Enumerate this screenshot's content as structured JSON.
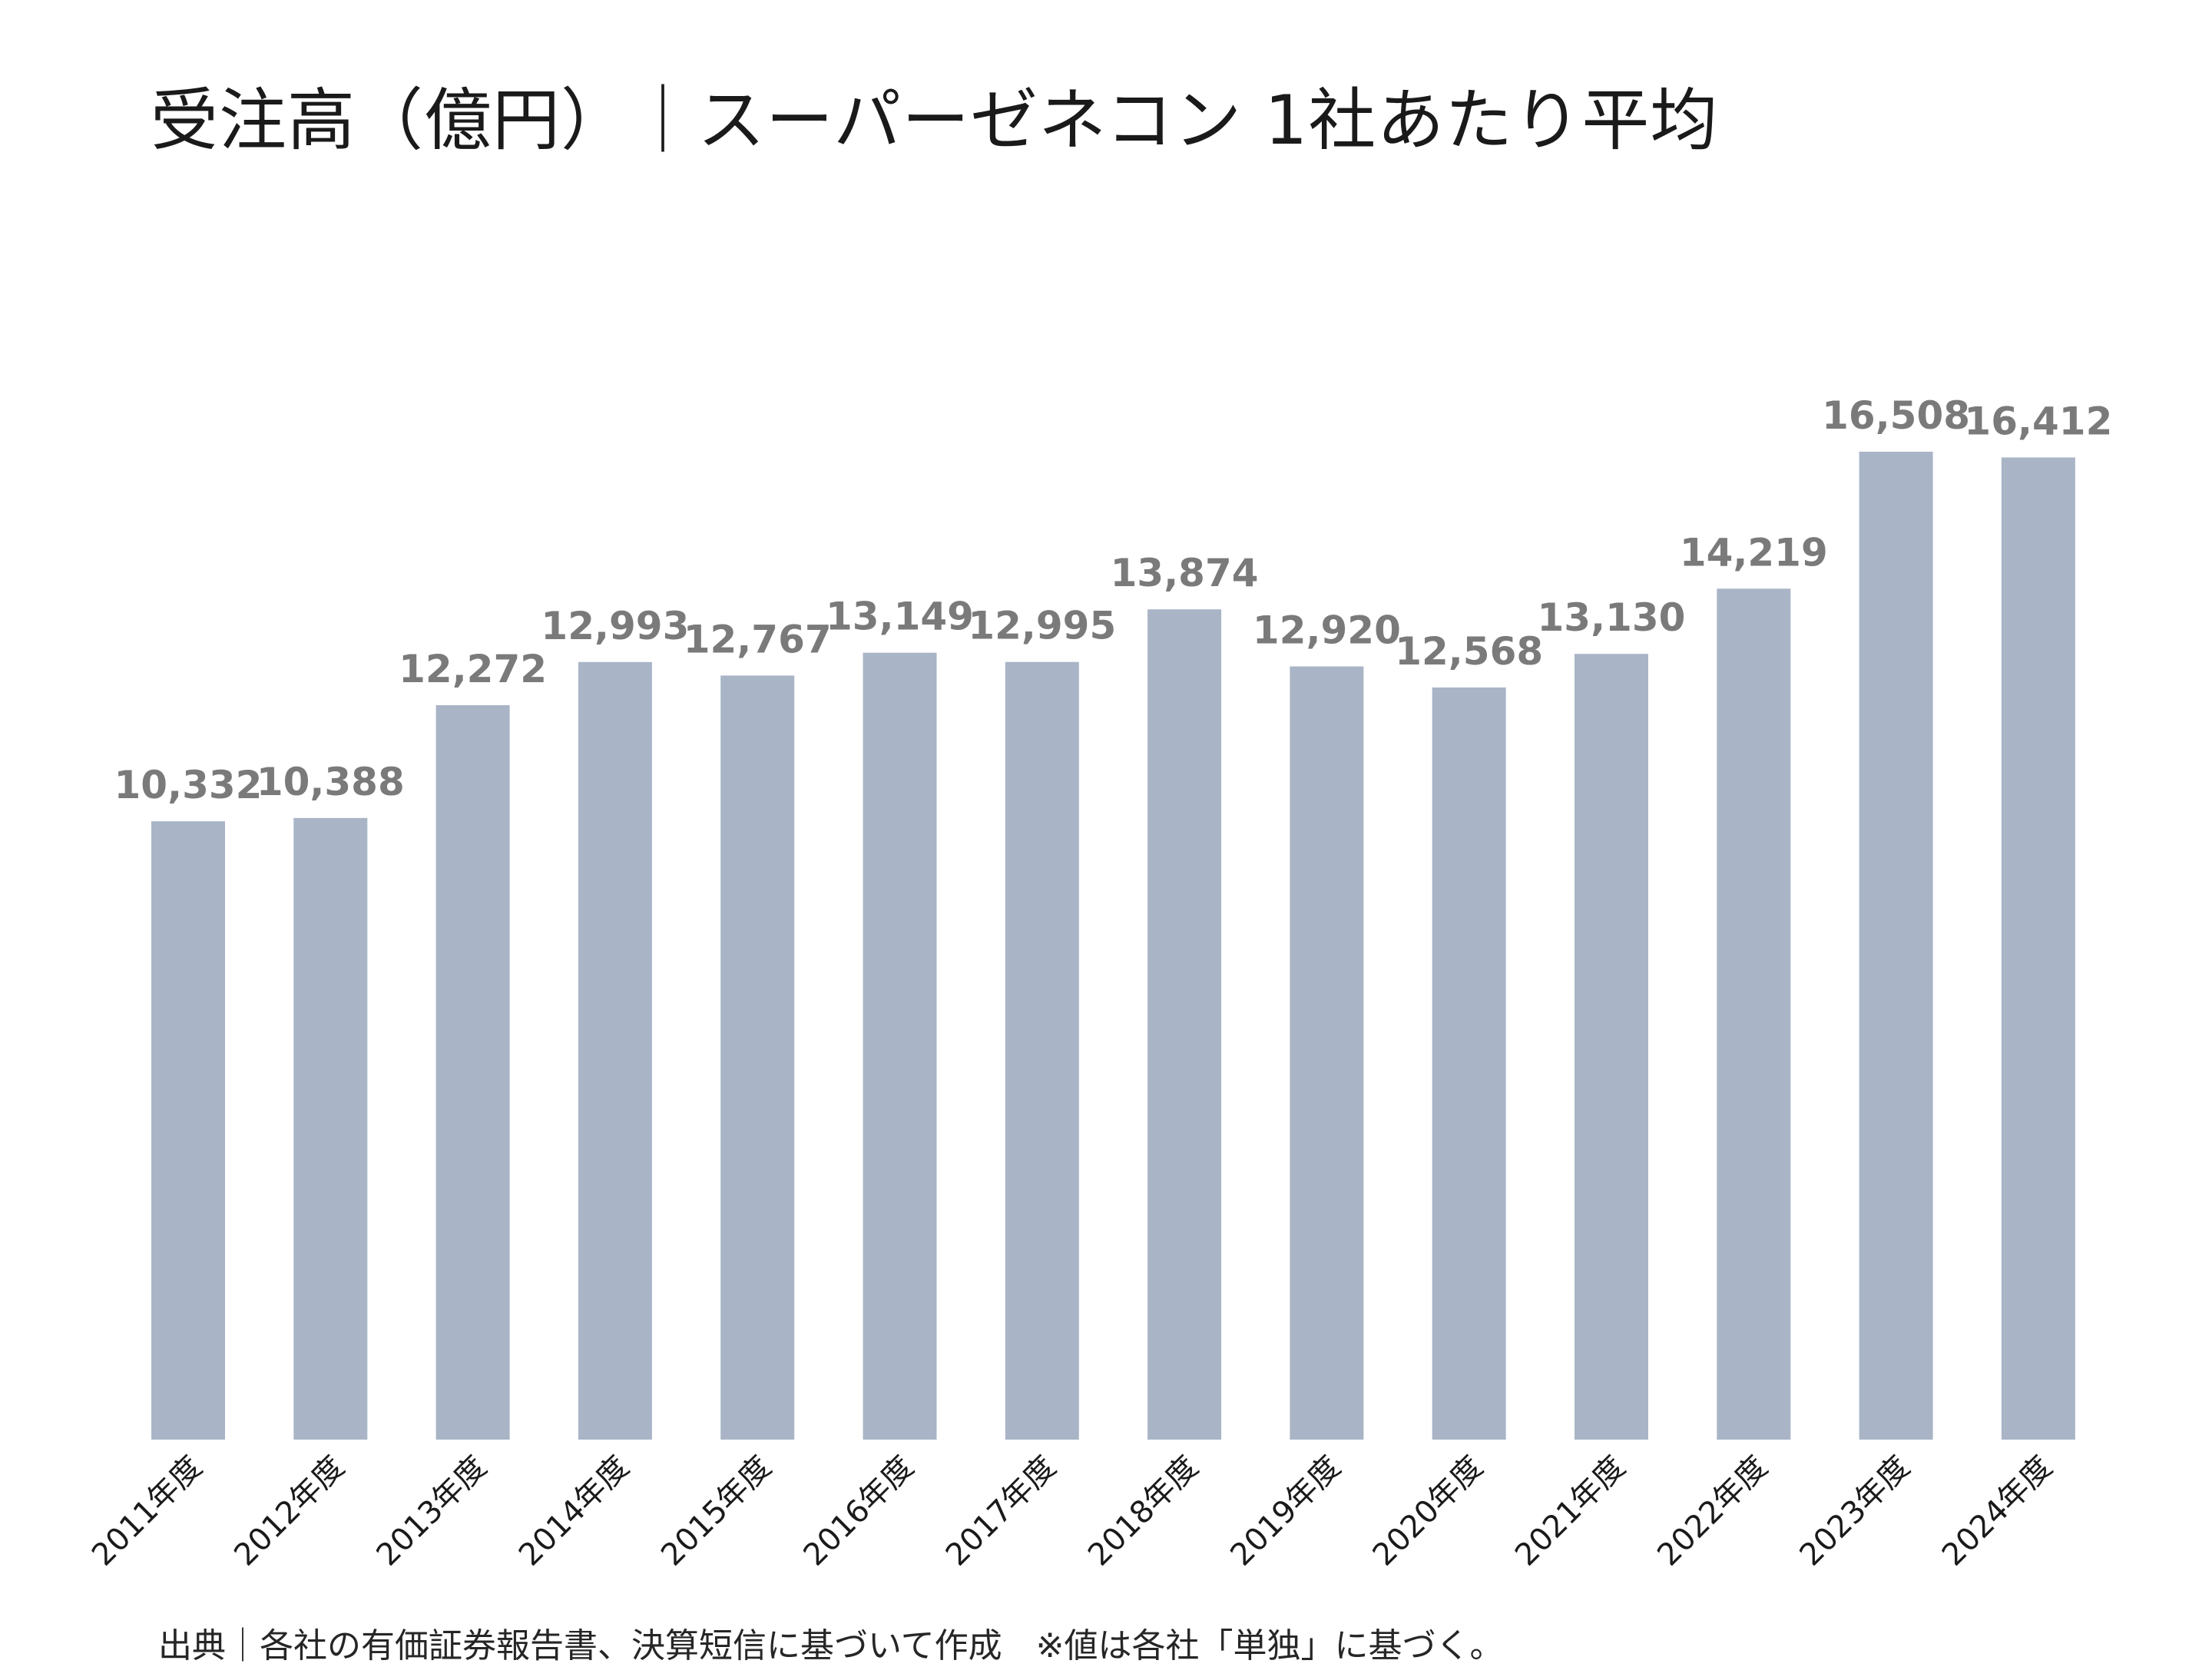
{
  "chart_data": {
    "type": "bar",
    "title": "受注高（億円）｜スーパーゼネコン 1社あたり平均",
    "xlabel": "",
    "ylabel": "",
    "categories": [
      "2011年度",
      "2012年度",
      "2013年度",
      "2014年度",
      "2015年度",
      "2016年度",
      "2017年度",
      "2018年度",
      "2019年度",
      "2020年度",
      "2021年度",
      "2022年度",
      "2023年度",
      "2024年度"
    ],
    "values": [
      10332,
      10388,
      12272,
      12993,
      12767,
      13149,
      12995,
      13874,
      12920,
      12568,
      13130,
      14219,
      16508,
      16412
    ],
    "value_labels": [
      "10,332",
      "10,388",
      "12,272",
      "12,993",
      "12,767",
      "13,149",
      "12,995",
      "13,874",
      "12,920",
      "12,568",
      "13,130",
      "14,219",
      "16,508",
      "16,412"
    ],
    "ylim": [
      0,
      16508
    ],
    "grid": false,
    "legend": "none",
    "bar_color": "#a9b5c6",
    "label_color": "#7a7a7a"
  },
  "source_note": "出典｜各社の有価証券報告書、決算短信に基づいて作成　※値は各社「単独」に基づく。"
}
